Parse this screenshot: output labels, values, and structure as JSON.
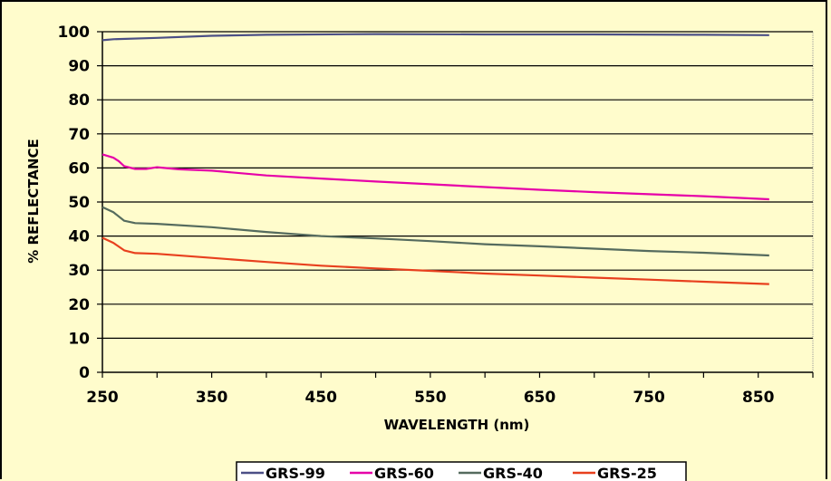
{
  "chart_data": {
    "type": "line",
    "title": "",
    "xlabel": "WAVELENGTH (nm)",
    "ylabel": "% REFLECTANCE",
    "xlim": [
      250,
      900
    ],
    "ylim": [
      0,
      100
    ],
    "x_ticks": [
      250,
      350,
      450,
      550,
      650,
      750,
      850
    ],
    "y_ticks": [
      0,
      10,
      20,
      30,
      40,
      50,
      60,
      70,
      80,
      90,
      100
    ],
    "grid": "horizontal",
    "legend_position": "bottom",
    "series": [
      {
        "name": "GRS-99",
        "color": "#4b4f86",
        "points": [
          [
            250,
            97.5
          ],
          [
            260,
            97.8
          ],
          [
            300,
            98.2
          ],
          [
            350,
            98.8
          ],
          [
            400,
            99.1
          ],
          [
            500,
            99.3
          ],
          [
            600,
            99.2
          ],
          [
            700,
            99.2
          ],
          [
            800,
            99.1
          ],
          [
            860,
            99.0
          ]
        ]
      },
      {
        "name": "GRS-60",
        "color": "#e600a8",
        "points": [
          [
            250,
            64
          ],
          [
            260,
            63
          ],
          [
            265,
            62
          ],
          [
            270,
            60.5
          ],
          [
            280,
            59.7
          ],
          [
            290,
            59.7
          ],
          [
            300,
            60.2
          ],
          [
            320,
            59.6
          ],
          [
            350,
            59.2
          ],
          [
            400,
            57.8
          ],
          [
            450,
            56.9
          ],
          [
            500,
            56.0
          ],
          [
            550,
            55.2
          ],
          [
            600,
            54.4
          ],
          [
            650,
            53.6
          ],
          [
            700,
            52.9
          ],
          [
            750,
            52.3
          ],
          [
            800,
            51.7
          ],
          [
            860,
            50.8
          ]
        ]
      },
      {
        "name": "GRS-40",
        "color": "#556b5e",
        "points": [
          [
            250,
            48.5
          ],
          [
            260,
            47
          ],
          [
            270,
            44.5
          ],
          [
            280,
            43.8
          ],
          [
            300,
            43.6
          ],
          [
            350,
            42.6
          ],
          [
            400,
            41.2
          ],
          [
            450,
            40.0
          ],
          [
            500,
            39.3
          ],
          [
            550,
            38.5
          ],
          [
            600,
            37.6
          ],
          [
            650,
            37.0
          ],
          [
            700,
            36.3
          ],
          [
            750,
            35.6
          ],
          [
            800,
            35.1
          ],
          [
            860,
            34.3
          ]
        ]
      },
      {
        "name": "GRS-25",
        "color": "#e8401e",
        "points": [
          [
            250,
            39.5
          ],
          [
            260,
            38
          ],
          [
            270,
            35.8
          ],
          [
            280,
            35.0
          ],
          [
            300,
            34.8
          ],
          [
            350,
            33.6
          ],
          [
            400,
            32.4
          ],
          [
            450,
            31.3
          ],
          [
            500,
            30.5
          ],
          [
            550,
            29.8
          ],
          [
            600,
            29.0
          ],
          [
            650,
            28.4
          ],
          [
            700,
            27.8
          ],
          [
            750,
            27.2
          ],
          [
            800,
            26.6
          ],
          [
            860,
            25.9
          ]
        ]
      }
    ]
  }
}
